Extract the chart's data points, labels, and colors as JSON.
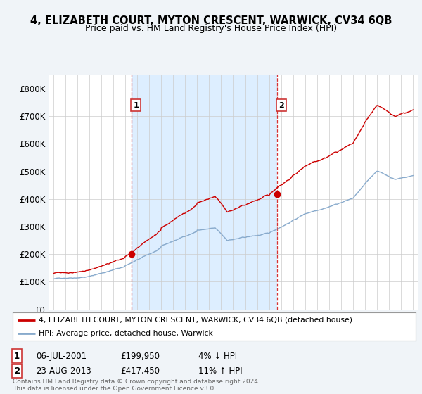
{
  "title": "4, ELIZABETH COURT, MYTON CRESCENT, WARWICK, CV34 6QB",
  "subtitle": "Price paid vs. HM Land Registry's House Price Index (HPI)",
  "ylim": [
    0,
    850000
  ],
  "yticks": [
    0,
    100000,
    200000,
    300000,
    400000,
    500000,
    600000,
    700000,
    800000
  ],
  "ytick_labels": [
    "£0",
    "£100K",
    "£200K",
    "£300K",
    "£400K",
    "£500K",
    "£600K",
    "£700K",
    "£800K"
  ],
  "xlim_min": 1994.6,
  "xlim_max": 2025.4,
  "sale1_year": 2001.51,
  "sale1_price": 199950,
  "sale1_label": "1",
  "sale2_year": 2013.64,
  "sale2_price": 417450,
  "sale2_label": "2",
  "bg_color": "#f0f4f8",
  "plot_bg_color": "#ffffff",
  "shade_color": "#ddeeff",
  "red_color": "#cc0000",
  "blue_color": "#88aacc",
  "vline_color": "#cc0000",
  "grid_color": "#cccccc",
  "legend_text1": "4, ELIZABETH COURT, MYTON CRESCENT, WARWICK, CV34 6QB (detached house)",
  "legend_text2": "HPI: Average price, detached house, Warwick",
  "annot1_date": "06-JUL-2001",
  "annot1_price": "£199,950",
  "annot1_hpi": "4% ↓ HPI",
  "annot2_date": "23-AUG-2013",
  "annot2_price": "£417,450",
  "annot2_hpi": "11% ↑ HPI",
  "footer": "Contains HM Land Registry data © Crown copyright and database right 2024.\nThis data is licensed under the Open Government Licence v3.0."
}
